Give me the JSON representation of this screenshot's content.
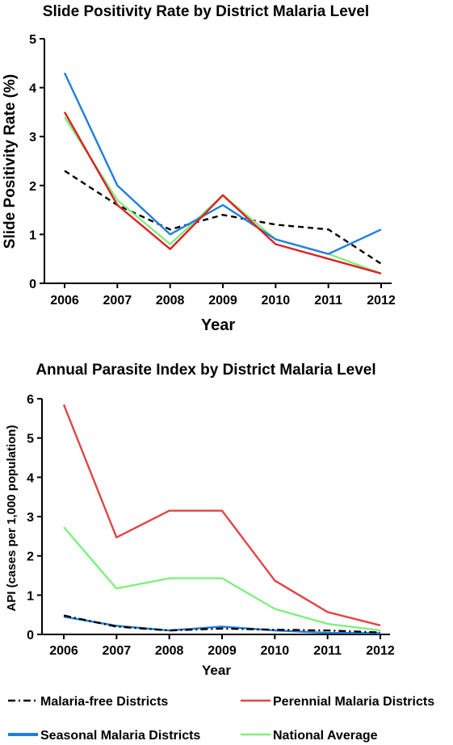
{
  "chart_data": [
    {
      "type": "line",
      "title": "Slide Positivity Rate by District Malaria Level",
      "xlabel": "Year",
      "ylabel": "Slide Positivity Rate (%)",
      "ylim": [
        0,
        5
      ],
      "yticks": [
        "0",
        "1",
        "2",
        "3",
        "4",
        "5"
      ],
      "categories": [
        "2006",
        "2007",
        "2008",
        "2009",
        "2010",
        "2011",
        "2012"
      ],
      "series": [
        {
          "name": "Malaria-free Districts",
          "color": "#000000",
          "dash": "dash",
          "values": [
            2.3,
            1.6,
            1.1,
            1.4,
            1.2,
            1.1,
            0.4
          ]
        },
        {
          "name": "National Average",
          "color": "#7ef07e",
          "dash": "solid",
          "values": [
            3.4,
            1.7,
            0.8,
            1.8,
            0.9,
            0.6,
            0.2
          ]
        },
        {
          "name": "Seasonal Malaria Districts",
          "color": "#1f7fe0",
          "dash": "solid",
          "values": [
            4.3,
            2.0,
            1.0,
            1.6,
            0.9,
            0.6,
            1.1
          ]
        },
        {
          "name": "Perennial Malaria Districts",
          "color": "#e02020",
          "dash": "solid",
          "values": [
            3.5,
            1.6,
            0.7,
            1.8,
            0.8,
            0.5,
            0.2
          ]
        }
      ]
    },
    {
      "type": "line",
      "title": "Annual Parasite Index by District Malaria Level",
      "xlabel": "Year",
      "ylabel": "API (cases per 1,000 population)",
      "ylim": [
        0,
        6
      ],
      "yticks": [
        "0",
        "1",
        "2",
        "3",
        "4",
        "5",
        "6"
      ],
      "categories": [
        "2006",
        "2007",
        "2008",
        "2009",
        "2010",
        "2011",
        "2012"
      ],
      "series": [
        {
          "name": "Perennial Malaria Districts",
          "color": "#e04545",
          "dash": "solid",
          "values": [
            5.85,
            2.47,
            3.15,
            3.15,
            1.37,
            0.57,
            0.23
          ]
        },
        {
          "name": "National Average",
          "color": "#7ef07e",
          "dash": "solid",
          "values": [
            2.73,
            1.17,
            1.43,
            1.43,
            0.65,
            0.27,
            0.1
          ]
        },
        {
          "name": "Seasonal Malaria Districts",
          "color": "#1f7fe0",
          "dash": "solid",
          "values": [
            0.45,
            0.22,
            0.1,
            0.2,
            0.1,
            0.04,
            0.03
          ]
        },
        {
          "name": "Malaria-free Districts",
          "color": "#000000",
          "dash": "dashdot",
          "values": [
            0.48,
            0.2,
            0.1,
            0.15,
            0.12,
            0.1,
            0.05
          ]
        }
      ]
    }
  ],
  "legend": {
    "items": [
      {
        "label": "Malaria-free Districts",
        "color": "#000000",
        "dash": "dashdot"
      },
      {
        "label": "Perennial Malaria Districts",
        "color": "#e04545",
        "dash": "solid"
      },
      {
        "label": "Seasonal Malaria Districts",
        "color": "#1f7fe0",
        "dash": "solid"
      },
      {
        "label": "National Average",
        "color": "#7ef07e",
        "dash": "solid"
      }
    ]
  }
}
